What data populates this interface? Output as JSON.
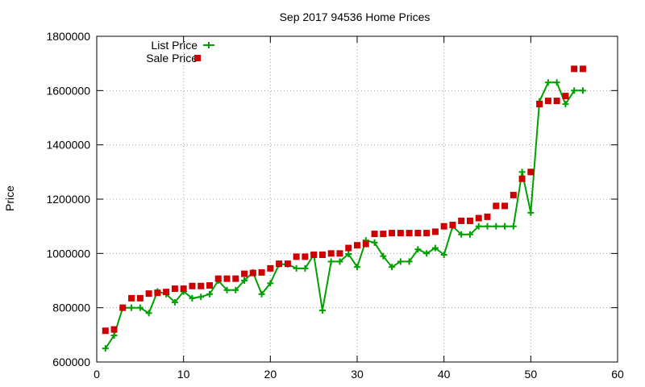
{
  "chart_data": {
    "type": "line",
    "title": "Sep 2017 94536 Home Prices",
    "xlabel": "",
    "ylabel": "Price",
    "xlim": [
      0,
      60
    ],
    "ylim": [
      600000,
      1800000
    ],
    "x_ticks": [
      0,
      10,
      20,
      30,
      40,
      50,
      60
    ],
    "y_ticks": [
      600000,
      800000,
      1000000,
      1200000,
      1400000,
      1600000,
      1800000
    ],
    "grid": true,
    "legend_position": "top-left",
    "series": [
      {
        "name": "List Price",
        "style": "line-plus",
        "color": "#00a000",
        "x": [
          1,
          2,
          3,
          4,
          5,
          6,
          7,
          8,
          9,
          10,
          11,
          12,
          13,
          14,
          15,
          16,
          17,
          18,
          19,
          20,
          21,
          22,
          23,
          24,
          25,
          26,
          27,
          28,
          29,
          30,
          31,
          32,
          33,
          34,
          35,
          36,
          37,
          38,
          39,
          40,
          41,
          42,
          43,
          44,
          45,
          46,
          47,
          48,
          49,
          50,
          51,
          52,
          53,
          54,
          55,
          56
        ],
        "y": [
          650000,
          698000,
          800000,
          800000,
          800000,
          780000,
          860000,
          850000,
          820000,
          860000,
          835000,
          840000,
          850000,
          900000,
          865000,
          865000,
          900000,
          930000,
          850000,
          890000,
          960000,
          960000,
          945000,
          945000,
          995000,
          790000,
          970000,
          970000,
          998000,
          950000,
          1048000,
          1040000,
          990000,
          950000,
          970000,
          970000,
          1015000,
          1000000,
          1020000,
          995000,
          1100000,
          1070000,
          1070000,
          1100000,
          1100000,
          1100000,
          1100000,
          1100000,
          1300000,
          1150000,
          1560000,
          1630000,
          1630000,
          1550000,
          1600000,
          1600000
        ]
      },
      {
        "name": "Sale Price",
        "style": "square-points",
        "color": "#cc0000",
        "x": [
          1,
          2,
          3,
          4,
          5,
          6,
          7,
          8,
          9,
          10,
          11,
          12,
          13,
          14,
          15,
          16,
          17,
          18,
          19,
          20,
          21,
          22,
          23,
          24,
          25,
          26,
          27,
          28,
          29,
          30,
          31,
          32,
          33,
          34,
          35,
          36,
          37,
          38,
          39,
          40,
          41,
          42,
          43,
          44,
          45,
          46,
          47,
          48,
          49,
          50,
          51,
          52,
          53,
          54,
          55,
          56
        ],
        "y": [
          715000,
          720000,
          800000,
          835000,
          835000,
          852000,
          855000,
          858000,
          870000,
          870000,
          880000,
          880000,
          882000,
          907000,
          907000,
          907000,
          925000,
          928000,
          930000,
          945000,
          962000,
          962000,
          988000,
          988000,
          995000,
          995000,
          1000000,
          1000000,
          1020000,
          1030000,
          1035000,
          1072000,
          1072000,
          1075000,
          1075000,
          1075000,
          1075000,
          1075000,
          1080000,
          1100000,
          1105000,
          1120000,
          1120000,
          1130000,
          1135000,
          1175000,
          1175000,
          1215000,
          1275000,
          1300000,
          1550000,
          1562000,
          1562000,
          1580000,
          1680000,
          1680000
        ]
      }
    ]
  }
}
